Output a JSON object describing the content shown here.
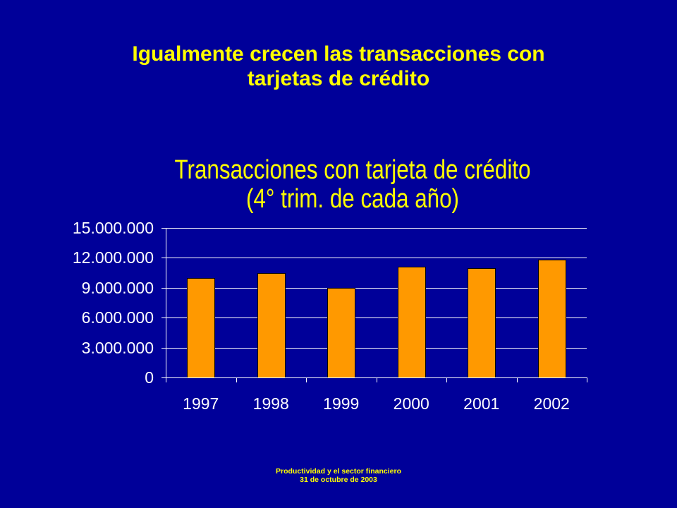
{
  "slide": {
    "title_lines": [
      "Igualmente crecen las transacciones con",
      "tarjetas de crédito"
    ],
    "footer_lines": [
      "Productividad y el sector financiero",
      "31 de octubre de 2003"
    ]
  },
  "colors": {
    "background": "#000099",
    "title_text": "#FFFF00",
    "axis_text": "#FFFFFF",
    "gridline": "#FFFFFF",
    "axis_line": "#FFFFFF",
    "bar_fill": "#FF9900",
    "bar_outline": "#000000"
  },
  "chart_data": {
    "type": "bar",
    "title": "Transacciones con tarjeta de crédito",
    "subtitle": "(4° trim. de cada año)",
    "categories": [
      "1997",
      "1998",
      "1999",
      "2000",
      "2001",
      "2002"
    ],
    "values": [
      10000000,
      10500000,
      9000000,
      11100000,
      11000000,
      11800000
    ],
    "ylim": [
      0,
      15000000
    ],
    "yticks": [
      0,
      3000000,
      6000000,
      9000000,
      12000000,
      15000000
    ],
    "ytick_labels": [
      "0",
      "3.000.000",
      "6.000.000",
      "9.000.000",
      "12.000.000",
      "15.000.000"
    ],
    "grid": true,
    "legend": "none"
  }
}
